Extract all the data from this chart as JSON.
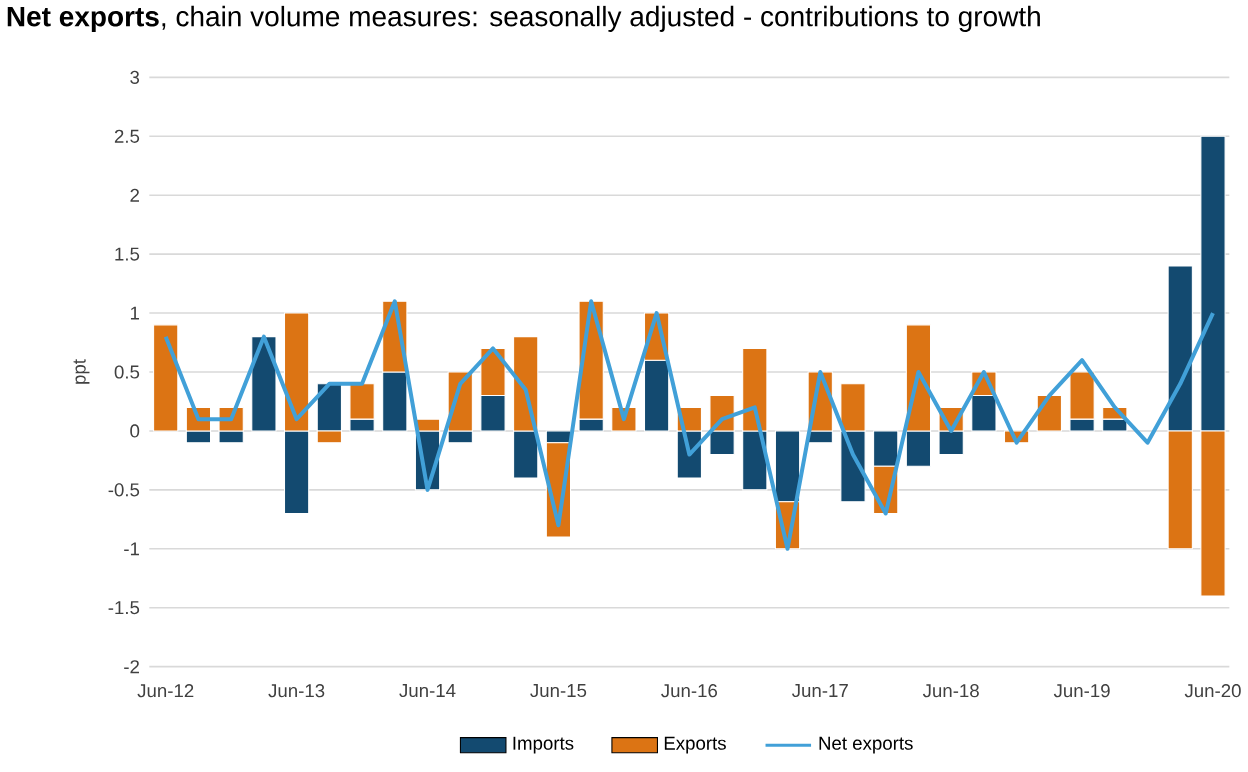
{
  "chart_data": {
    "type": "bar",
    "stacked": true,
    "title": "**Net exports**, chain volume measures: seasonally adjusted - contributions to growth",
    "ylabel": "ppt",
    "categories": [
      "Jun-12",
      null,
      null,
      null,
      "Jun-13",
      null,
      null,
      null,
      "Jun-14",
      null,
      null,
      null,
      "Jun-15",
      null,
      null,
      null,
      "Jun-16",
      null,
      null,
      null,
      "Jun-17",
      null,
      null,
      null,
      "Jun-18",
      null,
      null,
      null,
      "Jun-19",
      null,
      null,
      null,
      "Jun-20"
    ],
    "series": [
      {
        "name": "Imports",
        "color": "#134a70",
        "values": [
          0,
          -0.1,
          -0.1,
          0.8,
          -0.7,
          0.4,
          0.1,
          0.5,
          -0.5,
          -0.1,
          0.3,
          -0.4,
          -0.1,
          0.1,
          0,
          0.6,
          -0.4,
          -0.2,
          -0.5,
          -0.6,
          -0.1,
          -0.6,
          -0.3,
          -0.3,
          -0.2,
          0.3,
          0,
          0,
          0.1,
          0.1,
          0,
          1.4,
          2.5
        ]
      },
      {
        "name": "Exports",
        "color": "#dc7414",
        "values": [
          0.9,
          0.2,
          0.2,
          0,
          1.0,
          -0.1,
          0.3,
          0.6,
          0.1,
          0.5,
          0.4,
          0.8,
          -0.8,
          1.0,
          0.2,
          0.4,
          0.2,
          0.3,
          0.7,
          -0.4,
          0.5,
          0.4,
          -0.4,
          0.9,
          0.2,
          0.2,
          -0.1,
          0.3,
          0.4,
          0.1,
          0,
          -1.0,
          -1.4
        ]
      },
      {
        "name": "Net exports",
        "type": "line",
        "color": "#41a0d8",
        "values": [
          0.8,
          0.1,
          0.1,
          0.8,
          0.1,
          0.4,
          0.4,
          1.1,
          -0.5,
          0.4,
          0.7,
          0.35,
          -0.8,
          1.1,
          0.1,
          1.0,
          -0.2,
          0.1,
          0.2,
          -1.0,
          0.5,
          -0.2,
          -0.7,
          0.5,
          0.0,
          0.5,
          -0.1,
          0.3,
          0.6,
          0.2,
          -0.1,
          0.4,
          1.0
        ]
      }
    ],
    "ylim": [
      -2,
      3
    ],
    "yticks": [
      -2,
      -1.5,
      -1,
      -0.5,
      0,
      0.5,
      1,
      1.5,
      2,
      2.5,
      3
    ],
    "grid": "y",
    "legend": "bottom"
  }
}
